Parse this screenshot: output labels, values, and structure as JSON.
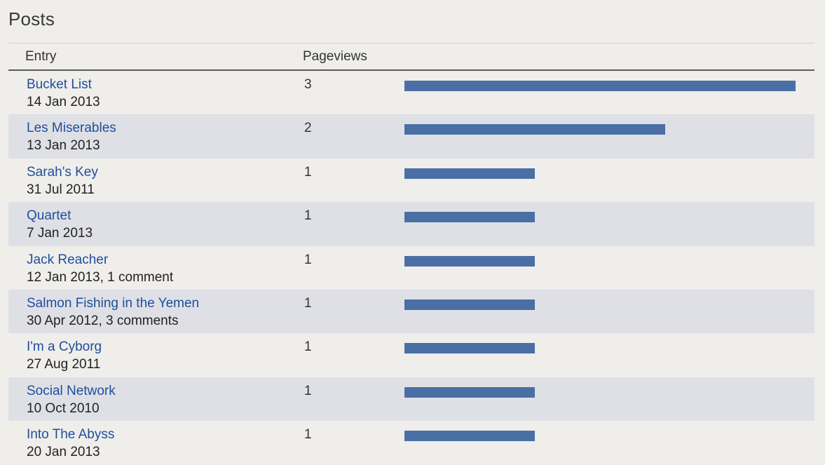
{
  "section": {
    "title": "Posts"
  },
  "table": {
    "header_entry": "Entry",
    "header_pageviews": "Pageviews"
  },
  "colors": {
    "bar": "#4a6fa5",
    "link": "#1f4e9a",
    "row_shade": "#dfe0e6",
    "background": "#efeeeb"
  },
  "max_pageviews": 3,
  "rows": [
    {
      "title": "Bucket List",
      "meta": "14 Jan 2013",
      "pageviews": 3
    },
    {
      "title": "Les Miserables",
      "meta": "13 Jan 2013",
      "pageviews": 2
    },
    {
      "title": "Sarah's Key",
      "meta": "31 Jul 2011",
      "pageviews": 1
    },
    {
      "title": "Quartet",
      "meta": "7 Jan 2013",
      "pageviews": 1
    },
    {
      "title": "Jack Reacher",
      "meta": "12 Jan 2013, 1 comment",
      "pageviews": 1
    },
    {
      "title": "Salmon Fishing in the Yemen",
      "meta": "30 Apr 2012, 3 comments",
      "pageviews": 1
    },
    {
      "title": "I'm a Cyborg",
      "meta": "27 Aug 2011",
      "pageviews": 1
    },
    {
      "title": "Social Network",
      "meta": "10 Oct 2010",
      "pageviews": 1
    },
    {
      "title": "Into The Abyss",
      "meta": "20 Jan 2013",
      "pageviews": 1
    }
  ]
}
